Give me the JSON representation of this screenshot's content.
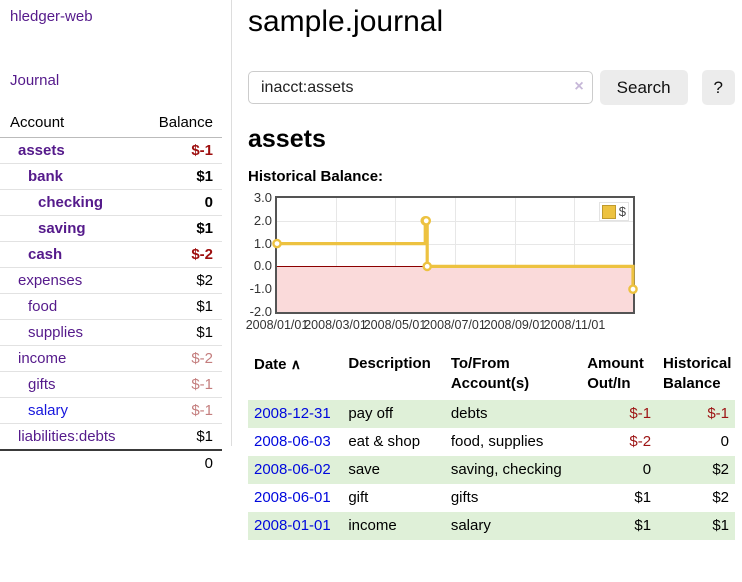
{
  "app": {
    "title": "hledger-web",
    "nav_journal": "Journal"
  },
  "sidebar": {
    "table_headers": {
      "account": "Account",
      "balance": "Balance"
    },
    "accounts": [
      {
        "name": "assets",
        "level": 1,
        "bold": true,
        "balance": "$-1",
        "balance_style": "neg-strong"
      },
      {
        "name": "bank",
        "level": 2,
        "bold": true,
        "balance": "$1",
        "balance_style": "plain"
      },
      {
        "name": "checking",
        "level": 3,
        "bold": true,
        "balance": "0",
        "balance_style": "plain"
      },
      {
        "name": "saving",
        "level": 3,
        "bold": true,
        "balance": "$1",
        "balance_style": "plain"
      },
      {
        "name": "cash",
        "level": 2,
        "bold": true,
        "balance": "$-2",
        "balance_style": "neg-strong"
      },
      {
        "name": "expenses",
        "level": 1,
        "bold": false,
        "balance": "$2",
        "balance_style": "plain"
      },
      {
        "name": "food",
        "level": 2,
        "bold": false,
        "balance": "$1",
        "balance_style": "plain"
      },
      {
        "name": "supplies",
        "level": 2,
        "bold": false,
        "balance": "$1",
        "balance_style": "plain"
      },
      {
        "name": "income",
        "level": 1,
        "bold": false,
        "balance": "$-2",
        "balance_style": "neg-muted"
      },
      {
        "name": "gifts",
        "level": 2,
        "bold": false,
        "balance": "$-1",
        "balance_style": "neg-muted"
      },
      {
        "name": "salary",
        "level": 2,
        "bold": false,
        "balance": "$-1",
        "balance_style": "neg-muted",
        "link_style": "unvisited"
      },
      {
        "name": "liabilities:debts",
        "level": 1,
        "bold": false,
        "balance": "$1",
        "balance_style": "plain"
      }
    ],
    "total": "0"
  },
  "main": {
    "title": "sample.journal",
    "search": {
      "value": "inacct:assets",
      "clear_icon": "×",
      "button": "Search",
      "help_button": "?"
    },
    "account_heading": "assets",
    "chart_label": "Historical Balance:"
  },
  "chart_data": {
    "type": "line",
    "step": true,
    "title": "Historical Balance",
    "series": [
      {
        "name": "$",
        "color": "#edc240",
        "points": [
          [
            "2008-01-01",
            1
          ],
          [
            "2008-06-01",
            2
          ],
          [
            "2008-06-02",
            2
          ],
          [
            "2008-06-03",
            0
          ],
          [
            "2008-12-31",
            -1
          ]
        ]
      }
    ],
    "xrange": [
      "2008-01-01",
      "2008-12-31"
    ],
    "ylim": [
      -2,
      3
    ],
    "yticks": [
      "3.0",
      "2.0",
      "1.0",
      "0.0",
      "-1.0",
      "-2.0"
    ],
    "xticks": [
      "2008/01/01",
      "2008/03/01",
      "2008/05/01",
      "2008/07/01",
      "2008/09/01",
      "2008/11/01"
    ],
    "grid": true,
    "legend_position": "top-right",
    "negative_region_color": "#fadada",
    "zero_line_color": "#8b0000"
  },
  "register": {
    "headers": {
      "date": "Date",
      "sort_arrow": "∧",
      "description": "Description",
      "accounts": "To/From Account(s)",
      "amount": "Amount Out/In",
      "balance": "Historical Balance"
    },
    "rows": [
      {
        "date": "2008-12-31",
        "description": "pay off",
        "accounts": "debts",
        "amount": "$-1",
        "amount_negative": true,
        "balance": "$-1",
        "balance_negative": true,
        "shaded": true
      },
      {
        "date": "2008-06-03",
        "description": "eat & shop",
        "accounts": "food, supplies",
        "amount": "$-2",
        "amount_negative": true,
        "balance": "0",
        "balance_negative": false,
        "shaded": false
      },
      {
        "date": "2008-06-02",
        "description": "save",
        "accounts": "saving, checking",
        "amount": "0",
        "amount_negative": false,
        "balance": "$2",
        "balance_negative": false,
        "shaded": true
      },
      {
        "date": "2008-06-01",
        "description": "gift",
        "accounts": "gifts",
        "amount": "$1",
        "amount_negative": false,
        "balance": "$2",
        "balance_negative": false,
        "shaded": false
      },
      {
        "date": "2008-01-01",
        "description": "income",
        "accounts": "salary",
        "amount": "$1",
        "amount_negative": false,
        "balance": "$1",
        "balance_negative": false,
        "shaded": true
      }
    ]
  }
}
